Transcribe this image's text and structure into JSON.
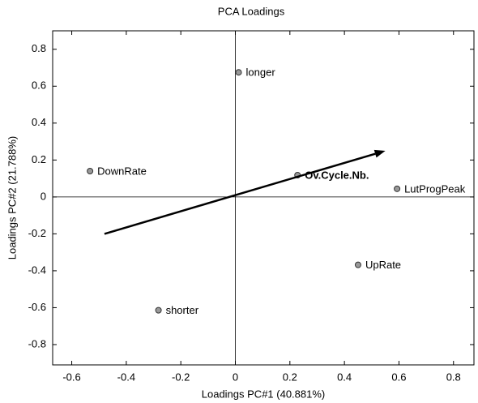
{
  "chart_data": {
    "type": "scatter",
    "title": "PCA Loadings",
    "xlabel": "Loadings PC#1 (40.881%)",
    "ylabel": "Loadings PC#2 (21.788%)",
    "series": [
      {
        "color": "#999999",
        "labels": [
          "longer",
          "DownRate",
          "Ov.Cycle.Nb.",
          "LutProgPeak",
          "UpRate",
          "shorter"
        ],
        "bold": [
          false,
          false,
          true,
          false,
          false,
          false
        ],
        "x": [
          0.012,
          -0.533,
          0.228,
          0.593,
          0.45,
          -0.282
        ],
        "values": [
          0.675,
          0.14,
          0.118,
          0.044,
          -0.368,
          -0.614
        ]
      }
    ],
    "arrow": {
      "x": [
        -0.48,
        0.55
      ],
      "y": [
        -0.2,
        0.25
      ]
    },
    "xlim": [
      -0.67,
      0.875
    ],
    "ylim": [
      -0.91,
      0.9
    ],
    "xticks": [
      -0.6,
      -0.4,
      -0.2,
      0,
      0.2,
      0.4,
      0.6,
      0.8
    ],
    "yticks": [
      -0.8,
      -0.6,
      -0.4,
      -0.2,
      0,
      0.2,
      0.4,
      0.6,
      0.8
    ]
  }
}
